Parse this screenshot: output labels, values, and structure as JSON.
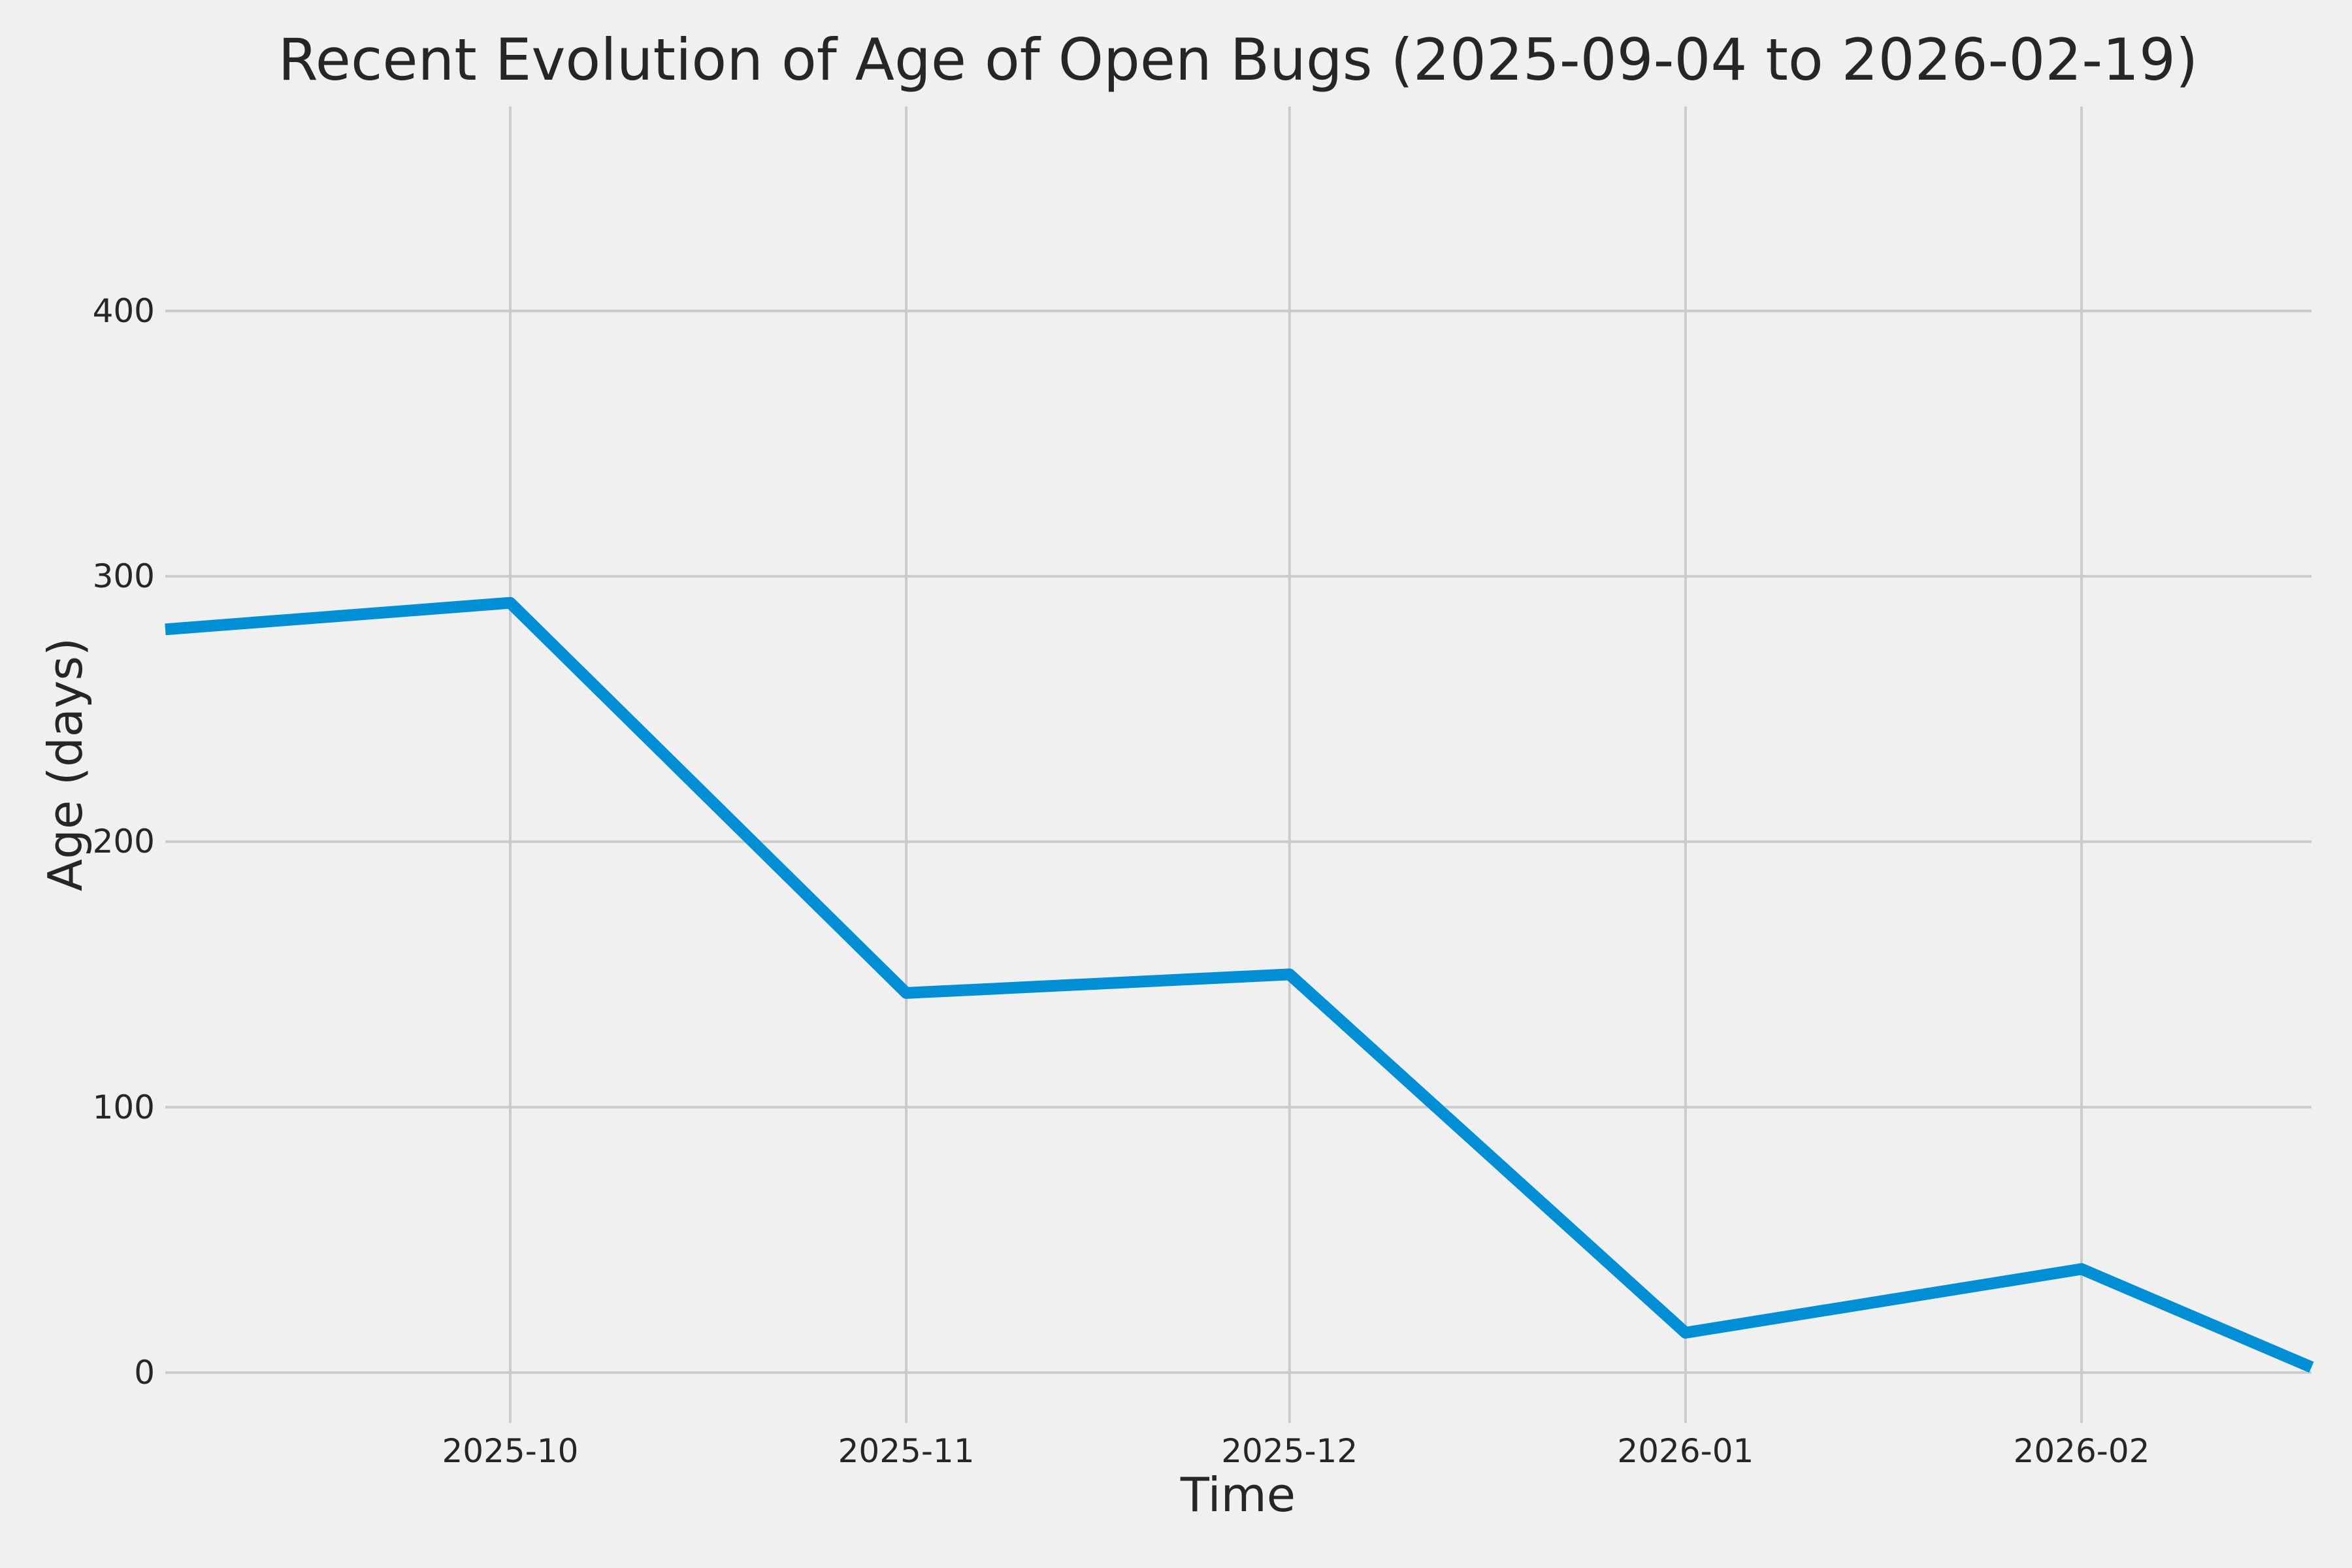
{
  "chart_data": {
    "type": "line",
    "title": "Recent Evolution of Age of Open Bugs (2025-09-04 to 2026-02-19)",
    "xlabel": "Time",
    "ylabel": "Age (days)",
    "x": [
      "2025-09-04",
      "2025-10-01",
      "2025-11-01",
      "2025-12-01",
      "2026-01-01",
      "2026-02-01",
      "2026-02-19"
    ],
    "y": [
      280,
      290,
      143,
      150,
      15,
      39,
      2
    ],
    "xlim": [
      "2025-09-04",
      "2026-02-19"
    ],
    "ylim": [
      -19,
      477
    ],
    "yticks": [
      0,
      100,
      200,
      300,
      400
    ],
    "xticks": [
      {
        "date": "2025-10-01",
        "label": "2025-10"
      },
      {
        "date": "2025-11-01",
        "label": "2025-11"
      },
      {
        "date": "2025-12-01",
        "label": "2025-12"
      },
      {
        "date": "2026-01-01",
        "label": "2026-01"
      },
      {
        "date": "2026-02-01",
        "label": "2026-02"
      }
    ],
    "grid": true,
    "legend": "none",
    "colors": {
      "line": "#008fd5",
      "background": "#f0f0f0",
      "grid": "#cbcbcb",
      "text": "#262626"
    }
  }
}
